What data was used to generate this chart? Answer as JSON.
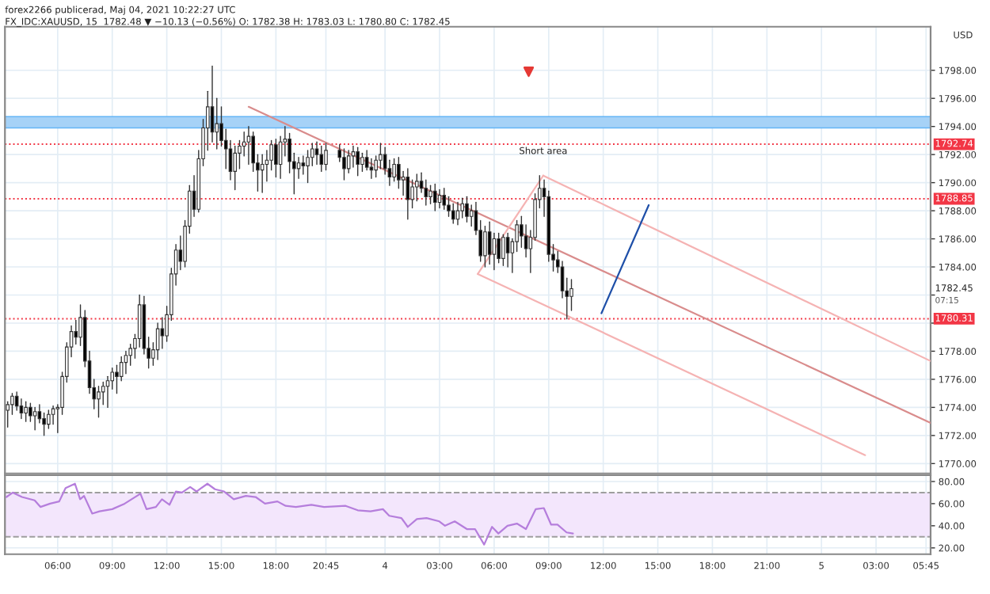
{
  "chart_data": [
    {
      "type": "candlestick",
      "title": "forex2266 publicerad, Maj 04, 2021 10:22:27 UTC",
      "subtitle": "FX_IDC:XAUUSD, 15  1782.48 ▼ −10.13 (−0.56%) O: 1782.38 H: 1783.03 L: 1780.80 C: 1782.45",
      "ylabel": "USD",
      "x": [
        "2021-05-03T03:15",
        "2021-05-03T03:30",
        "2021-05-03T03:45",
        "2021-05-03T04:00",
        "2021-05-03T04:15",
        "2021-05-03T04:30",
        "2021-05-03T04:45",
        "2021-05-03T05:00",
        "2021-05-03T05:15",
        "2021-05-03T05:30",
        "2021-05-03T05:45",
        "2021-05-03T06:00",
        "2021-05-03T06:15",
        "2021-05-03T06:30",
        "2021-05-03T06:45",
        "2021-05-03T07:00",
        "2021-05-03T07:15",
        "2021-05-03T07:30",
        "2021-05-03T07:45",
        "2021-05-03T08:00",
        "2021-05-03T08:15",
        "2021-05-03T08:30",
        "2021-05-03T08:45",
        "2021-05-03T09:00",
        "2021-05-03T09:15",
        "2021-05-03T09:30",
        "2021-05-03T09:45",
        "2021-05-03T10:00",
        "2021-05-03T10:15",
        "2021-05-03T10:30",
        "2021-05-03T10:45",
        "2021-05-03T11:00",
        "2021-05-03T11:15",
        "2021-05-03T11:30",
        "2021-05-03T11:45",
        "2021-05-03T12:00",
        "2021-05-03T12:15",
        "2021-05-03T12:30",
        "2021-05-03T12:45",
        "2021-05-03T13:00",
        "2021-05-03T13:15",
        "2021-05-03T13:30",
        "2021-05-03T13:45",
        "2021-05-03T14:00",
        "2021-05-03T14:15",
        "2021-05-03T14:30",
        "2021-05-03T14:45",
        "2021-05-03T15:00",
        "2021-05-03T15:15",
        "2021-05-03T15:30",
        "2021-05-03T15:45",
        "2021-05-03T16:00",
        "2021-05-03T16:15",
        "2021-05-03T16:30",
        "2021-05-03T16:45",
        "2021-05-03T17:00",
        "2021-05-03T17:15",
        "2021-05-03T17:30",
        "2021-05-03T17:45",
        "2021-05-03T18:00",
        "2021-05-03T18:15",
        "2021-05-03T18:30",
        "2021-05-03T18:45",
        "2021-05-03T19:00",
        "2021-05-03T19:15",
        "2021-05-03T19:30",
        "2021-05-03T19:45",
        "2021-05-03T20:00",
        "2021-05-03T20:15",
        "2021-05-03T20:30",
        "2021-05-03T20:45",
        "2021-05-03T21:30",
        "2021-05-03T21:45",
        "2021-05-03T22:00",
        "2021-05-03T22:15",
        "2021-05-03T22:30",
        "2021-05-03T22:45",
        "2021-05-03T23:00",
        "2021-05-03T23:15",
        "2021-05-03T23:30",
        "2021-05-03T23:45",
        "2021-05-04T00:00",
        "2021-05-04T00:15",
        "2021-05-04T00:30",
        "2021-05-04T00:45",
        "2021-05-04T01:00",
        "2021-05-04T01:15",
        "2021-05-04T01:30",
        "2021-05-04T01:45",
        "2021-05-04T02:00",
        "2021-05-04T02:15",
        "2021-05-04T02:30",
        "2021-05-04T02:45",
        "2021-05-04T03:00",
        "2021-05-04T03:15",
        "2021-05-04T03:30",
        "2021-05-04T03:45",
        "2021-05-04T04:00",
        "2021-05-04T04:15",
        "2021-05-04T04:30",
        "2021-05-04T04:45",
        "2021-05-04T05:00",
        "2021-05-04T05:15",
        "2021-05-04T05:30",
        "2021-05-04T05:45",
        "2021-05-04T06:00",
        "2021-05-04T06:15",
        "2021-05-04T06:30",
        "2021-05-04T06:45",
        "2021-05-04T07:00",
        "2021-05-04T07:15",
        "2021-05-04T07:30",
        "2021-05-04T07:45",
        "2021-05-04T08:00",
        "2021-05-04T08:15",
        "2021-05-04T08:30",
        "2021-05-04T08:45",
        "2021-05-04T09:00",
        "2021-05-04T09:15",
        "2021-05-04T09:30",
        "2021-05-04T09:45",
        "2021-05-04T10:00",
        "2021-05-04T10:15"
      ],
      "ohlc": [
        [
          1773.8,
          1774.4,
          1772.6,
          1774.2
        ],
        [
          1774.2,
          1775.0,
          1773.5,
          1774.8
        ],
        [
          1774.8,
          1775.1,
          1773.8,
          1774.1
        ],
        [
          1774.1,
          1774.6,
          1773.2,
          1773.6
        ],
        [
          1773.6,
          1774.4,
          1773.0,
          1774.0
        ],
        [
          1774.0,
          1774.3,
          1773.0,
          1773.4
        ],
        [
          1773.4,
          1774.0,
          1772.4,
          1773.7
        ],
        [
          1773.7,
          1774.2,
          1772.9,
          1773.2
        ],
        [
          1773.2,
          1773.6,
          1772.0,
          1772.8
        ],
        [
          1772.8,
          1773.8,
          1772.5,
          1773.5
        ],
        [
          1773.5,
          1774.1,
          1772.8,
          1773.9
        ],
        [
          1773.9,
          1774.2,
          1772.2,
          1774.0
        ],
        [
          1774.0,
          1776.5,
          1773.5,
          1776.2
        ],
        [
          1776.2,
          1778.6,
          1775.8,
          1778.3
        ],
        [
          1778.3,
          1779.8,
          1777.6,
          1779.4
        ],
        [
          1779.4,
          1780.2,
          1778.5,
          1779.0
        ],
        [
          1779.0,
          1781.3,
          1778.4,
          1780.4
        ],
        [
          1780.4,
          1780.9,
          1776.9,
          1777.3
        ],
        [
          1777.3,
          1778.0,
          1775.0,
          1775.4
        ],
        [
          1775.4,
          1776.0,
          1773.9,
          1774.6
        ],
        [
          1774.6,
          1775.5,
          1773.3,
          1775.1
        ],
        [
          1775.1,
          1775.8,
          1774.2,
          1775.5
        ],
        [
          1775.5,
          1776.2,
          1774.0,
          1775.9
        ],
        [
          1775.9,
          1776.8,
          1775.3,
          1776.5
        ],
        [
          1776.5,
          1777.0,
          1775.0,
          1776.2
        ],
        [
          1776.2,
          1777.6,
          1775.9,
          1777.2
        ],
        [
          1777.2,
          1778.0,
          1776.4,
          1777.7
        ],
        [
          1777.7,
          1778.5,
          1777.0,
          1778.2
        ],
        [
          1778.2,
          1779.2,
          1777.5,
          1778.9
        ],
        [
          1778.9,
          1782.0,
          1778.3,
          1781.3
        ],
        [
          1781.3,
          1781.9,
          1777.8,
          1778.2
        ],
        [
          1778.2,
          1779.0,
          1776.8,
          1777.5
        ],
        [
          1777.5,
          1778.6,
          1777.0,
          1778.1
        ],
        [
          1778.1,
          1780.0,
          1777.4,
          1779.6
        ],
        [
          1779.6,
          1780.4,
          1778.2,
          1779.1
        ],
        [
          1779.1,
          1781.2,
          1778.7,
          1780.6
        ],
        [
          1780.6,
          1783.9,
          1780.2,
          1783.5
        ],
        [
          1783.5,
          1785.6,
          1782.7,
          1785.2
        ],
        [
          1785.2,
          1786.2,
          1783.8,
          1784.4
        ],
        [
          1784.4,
          1787.3,
          1784.0,
          1786.9
        ],
        [
          1786.9,
          1789.8,
          1786.4,
          1789.4
        ],
        [
          1789.4,
          1790.5,
          1787.6,
          1788.1
        ],
        [
          1788.1,
          1792.3,
          1787.9,
          1791.7
        ],
        [
          1791.7,
          1794.5,
          1791.2,
          1793.9
        ],
        [
          1793.9,
          1796.5,
          1792.3,
          1795.4
        ],
        [
          1795.4,
          1798.3,
          1792.9,
          1793.6
        ],
        [
          1793.6,
          1796.0,
          1792.4,
          1794.2
        ],
        [
          1794.2,
          1795.4,
          1792.6,
          1793.0
        ],
        [
          1793.0,
          1793.8,
          1791.0,
          1792.4
        ],
        [
          1792.4,
          1793.0,
          1790.2,
          1790.8
        ],
        [
          1790.8,
          1792.6,
          1789.5,
          1792.1
        ],
        [
          1792.1,
          1793.0,
          1791.0,
          1792.6
        ],
        [
          1792.6,
          1793.6,
          1791.9,
          1792.9
        ],
        [
          1792.9,
          1794.0,
          1791.3,
          1793.3
        ],
        [
          1793.3,
          1793.6,
          1790.8,
          1791.4
        ],
        [
          1791.4,
          1792.0,
          1789.4,
          1790.9
        ],
        [
          1790.9,
          1792.0,
          1789.3,
          1791.3
        ],
        [
          1791.3,
          1792.3,
          1790.1,
          1791.6
        ],
        [
          1791.6,
          1793.0,
          1790.9,
          1792.7
        ],
        [
          1792.7,
          1793.1,
          1790.4,
          1791.3
        ],
        [
          1791.3,
          1793.3,
          1790.3,
          1792.9
        ],
        [
          1792.9,
          1794.0,
          1791.9,
          1793.1
        ],
        [
          1793.1,
          1793.5,
          1790.7,
          1791.5
        ],
        [
          1791.5,
          1792.1,
          1789.2,
          1791.0
        ],
        [
          1791.0,
          1791.8,
          1790.3,
          1791.4
        ],
        [
          1791.4,
          1791.9,
          1790.6,
          1791.2
        ],
        [
          1791.2,
          1792.3,
          1790.0,
          1791.8
        ],
        [
          1791.8,
          1792.8,
          1791.2,
          1792.4
        ],
        [
          1792.4,
          1792.9,
          1791.3,
          1792.0
        ],
        [
          1792.0,
          1792.6,
          1790.8,
          1791.3
        ],
        [
          1791.3,
          1792.8,
          1790.9,
          1792.3
        ],
        [
          1792.3,
          1792.7,
          1791.5,
          1791.8
        ],
        [
          1791.8,
          1792.4,
          1790.2,
          1791.0
        ],
        [
          1791.0,
          1792.3,
          1790.7,
          1791.9
        ],
        [
          1791.9,
          1792.6,
          1791.1,
          1792.2
        ],
        [
          1792.2,
          1792.5,
          1790.5,
          1791.3
        ],
        [
          1791.3,
          1792.1,
          1790.8,
          1791.8
        ],
        [
          1791.8,
          1792.3,
          1790.9,
          1791.1
        ],
        [
          1791.1,
          1791.7,
          1790.3,
          1790.9
        ],
        [
          1790.9,
          1791.9,
          1790.4,
          1791.6
        ],
        [
          1791.6,
          1792.8,
          1791.0,
          1792.0
        ],
        [
          1792.0,
          1792.5,
          1790.6,
          1791.0
        ],
        [
          1791.0,
          1791.6,
          1789.8,
          1790.4
        ],
        [
          1790.4,
          1791.7,
          1790.1,
          1791.3
        ],
        [
          1791.3,
          1791.8,
          1789.6,
          1790.2
        ],
        [
          1790.2,
          1790.8,
          1789.1,
          1790.4
        ],
        [
          1790.4,
          1791.0,
          1787.4,
          1788.8
        ],
        [
          1788.8,
          1790.2,
          1788.2,
          1789.7
        ],
        [
          1789.7,
          1790.6,
          1788.7,
          1790.1
        ],
        [
          1790.1,
          1790.7,
          1789.3,
          1789.6
        ],
        [
          1789.6,
          1790.2,
          1788.4,
          1789.0
        ],
        [
          1789.0,
          1789.8,
          1788.5,
          1789.4
        ],
        [
          1789.4,
          1789.9,
          1788.0,
          1788.6
        ],
        [
          1788.6,
          1789.5,
          1788.2,
          1789.1
        ],
        [
          1789.1,
          1789.6,
          1788.1,
          1788.4
        ],
        [
          1788.4,
          1789.0,
          1787.6,
          1788.0
        ],
        [
          1788.0,
          1788.5,
          1787.1,
          1787.4
        ],
        [
          1787.4,
          1788.6,
          1787.0,
          1788.0
        ],
        [
          1788.0,
          1788.9,
          1787.5,
          1788.5
        ],
        [
          1788.5,
          1789.0,
          1787.2,
          1787.6
        ],
        [
          1787.6,
          1788.4,
          1786.9,
          1788.0
        ],
        [
          1788.0,
          1788.6,
          1786.3,
          1786.6
        ],
        [
          1786.6,
          1787.3,
          1784.4,
          1784.8
        ],
        [
          1784.8,
          1786.9,
          1784.0,
          1786.5
        ],
        [
          1786.5,
          1787.2,
          1784.2,
          1784.9
        ],
        [
          1784.9,
          1786.4,
          1783.8,
          1786.0
        ],
        [
          1786.0,
          1786.4,
          1784.3,
          1784.6
        ],
        [
          1784.6,
          1786.3,
          1784.1,
          1786.1
        ],
        [
          1786.1,
          1786.4,
          1784.0,
          1785.0
        ],
        [
          1785.0,
          1786.0,
          1783.6,
          1785.8
        ],
        [
          1785.8,
          1787.3,
          1785.1,
          1787.0
        ],
        [
          1787.0,
          1787.6,
          1785.4,
          1786.2
        ],
        [
          1786.2,
          1787.0,
          1784.7,
          1785.3
        ],
        [
          1785.3,
          1786.6,
          1783.6,
          1786.1
        ],
        [
          1786.1,
          1789.2,
          1785.9,
          1788.8
        ],
        [
          1788.8,
          1790.5,
          1788.2,
          1789.6
        ],
        [
          1789.6,
          1790.2,
          1787.6,
          1789.0
        ],
        [
          1789.0,
          1789.4,
          1784.4,
          1784.9
        ],
        [
          1784.9,
          1785.6,
          1783.7,
          1784.5
        ],
        [
          1784.5,
          1785.1,
          1783.6,
          1784.0
        ],
        [
          1784.0,
          1784.4,
          1781.8,
          1782.3
        ],
        [
          1782.3,
          1783.2,
          1780.3,
          1781.9
        ],
        [
          1781.9,
          1783.1,
          1780.9,
          1782.45
        ]
      ],
      "series": [
        {
          "type": "line",
          "color": "#d98c8c",
          "x": [
            "2021-05-03T16:30",
            "2021-05-05T06:00"
          ],
          "values": [
            1795.4,
            1772.9
          ]
        },
        {
          "type": "line",
          "color": "#f5b3b3",
          "x": [
            "2021-05-04T08:42",
            "2021-05-05T06:00"
          ],
          "values": [
            1790.5,
            1777.3
          ]
        },
        {
          "type": "line",
          "color": "#f5b3b3",
          "x": [
            "2021-05-04T05:06",
            "2021-05-05T02:24"
          ],
          "values": [
            1783.5,
            1770.6
          ]
        },
        {
          "type": "line",
          "color": "#f5b3b3",
          "x": [
            "2021-05-04T05:06",
            "2021-05-04T08:42"
          ],
          "values": [
            1783.5,
            1790.5
          ]
        },
        {
          "type": "line",
          "color": "#1e4fa8",
          "x": [
            "2021-05-04T11:54",
            "2021-05-04T14:30"
          ],
          "values": [
            1780.7,
            1788.4
          ]
        },
        {
          "type": "scatter",
          "color": "#e53935",
          "marker": "triangle",
          "x": [
            "2021-05-04T07:54"
          ],
          "values": [
            1797.9
          ]
        }
      ],
      "ref_lines": [
        {
          "axis": "y",
          "value": 1792.74,
          "label": "1792.74",
          "color": "#f23645",
          "line_style": "dotted"
        },
        {
          "axis": "y",
          "value": 1788.85,
          "label": "1788.85",
          "color": "#f23645",
          "line_style": "dotted"
        },
        {
          "axis": "y",
          "value": 1780.31,
          "label": "1780.31",
          "color": "#f23645",
          "line_style": "dotted"
        }
      ],
      "bands": [
        {
          "axis": "y",
          "from": 1793.9,
          "to": 1794.7,
          "color": "#a6d2f7"
        }
      ],
      "annotations": [
        {
          "text": "Short area",
          "x": "2021-05-04T08:42",
          "y": 1790.5
        },
        "1782.45",
        "07:15"
      ],
      "xlim": [
        "2021-05-03T03:06",
        "2021-05-05T06:00"
      ],
      "xticks": [
        {
          "value": "2021-05-03T06:00",
          "label": null
        },
        {
          "value": "2021-05-03T09:00",
          "label": null
        },
        {
          "value": "2021-05-03T12:00",
          "label": null
        },
        {
          "value": "2021-05-03T15:00",
          "label": null
        },
        {
          "value": "2021-05-03T18:00",
          "label": null
        },
        {
          "value": "2021-05-03T20:45",
          "label": null
        },
        {
          "value": "2021-05-04T00:00",
          "label": null
        },
        {
          "value": "2021-05-04T03:00",
          "label": null
        },
        {
          "value": "2021-05-04T06:00",
          "label": null
        },
        {
          "value": "2021-05-04T09:00",
          "label": null
        },
        {
          "value": "2021-05-04T12:00",
          "label": null
        },
        {
          "value": "2021-05-04T15:00",
          "label": null
        },
        {
          "value": "2021-05-04T18:00",
          "label": null
        },
        {
          "value": "2021-05-04T21:00",
          "label": null
        },
        {
          "value": "2021-05-05T00:00",
          "label": null
        },
        {
          "value": "2021-05-05T03:00",
          "label": null
        },
        {
          "value": "2021-05-05T05:45",
          "label": null
        }
      ],
      "ylim": [
        1769.3,
        1801.1
      ],
      "yticks": [
        {
          "value": 1770,
          "label": "1770.00"
        },
        {
          "value": 1772,
          "label": "1772.00"
        },
        {
          "value": 1774,
          "label": "1774.00"
        },
        {
          "value": 1776,
          "label": "1776.00"
        },
        {
          "value": 1778,
          "label": "1778.00"
        },
        {
          "value": 1780,
          "label": null
        },
        {
          "value": 1782,
          "label": null
        },
        {
          "value": 1784,
          "label": "1784.00"
        },
        {
          "value": 1786,
          "label": "1786.00"
        },
        {
          "value": 1788,
          "label": "1788.00"
        },
        {
          "value": 1790,
          "label": "1790.00"
        },
        {
          "value": 1792,
          "label": "1792.00"
        },
        {
          "value": 1794,
          "label": "1794.00"
        },
        {
          "value": 1796,
          "label": "1796.00"
        },
        {
          "value": 1798,
          "label": "1798.00"
        }
      ],
      "tick_labels": "y",
      "grid": true
    },
    {
      "type": "line",
      "x": [
        "2021-05-03T03:11",
        "2021-05-03T03:32",
        "2021-05-03T04:02",
        "2021-05-03T04:44",
        "2021-05-03T05:03",
        "2021-05-03T05:35",
        "2021-05-03T06:05",
        "2021-05-03T06:26",
        "2021-05-03T06:57",
        "2021-05-03T07:14",
        "2021-05-03T07:27",
        "2021-05-03T07:54",
        "2021-05-03T08:18",
        "2021-05-03T09:00",
        "2021-05-03T09:41",
        "2021-05-03T10:33",
        "2021-05-03T10:53",
        "2021-05-03T11:24",
        "2021-05-03T11:44",
        "2021-05-03T12:09",
        "2021-05-03T12:30",
        "2021-05-03T12:50",
        "2021-05-03T13:17",
        "2021-05-03T13:38",
        "2021-05-03T14:14",
        "2021-05-03T14:39",
        "2021-05-03T15:09",
        "2021-05-03T15:41",
        "2021-05-03T16:21",
        "2021-05-03T16:53",
        "2021-05-03T17:24",
        "2021-05-03T18:05",
        "2021-05-03T18:32",
        "2021-05-03T19:06",
        "2021-05-03T19:57",
        "2021-05-03T20:39",
        "2021-05-03T21:50",
        "2021-05-03T22:30",
        "2021-05-03T23:12",
        "2021-05-03T23:53",
        "2021-05-04T00:14",
        "2021-05-04T00:54",
        "2021-05-04T01:15",
        "2021-05-04T01:45",
        "2021-05-04T02:17",
        "2021-05-04T02:59",
        "2021-05-04T03:18",
        "2021-05-04T03:50",
        "2021-05-04T04:30",
        "2021-05-04T04:57",
        "2021-05-04T05:27",
        "2021-05-04T05:53",
        "2021-05-04T06:14",
        "2021-05-04T06:44",
        "2021-05-04T07:15",
        "2021-05-04T07:45",
        "2021-05-04T08:17",
        "2021-05-04T08:44",
        "2021-05-04T09:08",
        "2021-05-04T09:29",
        "2021-05-04T09:59",
        "2021-05-04T10:20"
      ],
      "series": [
        {
          "color": "#b57edc",
          "values": [
            66,
            70,
            66,
            63,
            57,
            60,
            62,
            74,
            78,
            64,
            67,
            51,
            53,
            55,
            60,
            69,
            55,
            57,
            64,
            59,
            71,
            70,
            75,
            71,
            78,
            73,
            71,
            64,
            67,
            66,
            60,
            62,
            58,
            57,
            59,
            57,
            58,
            54,
            53,
            55,
            49,
            47,
            39,
            46,
            47,
            44,
            40,
            44,
            37,
            37,
            23,
            39,
            33,
            40,
            42,
            37,
            55,
            56,
            41,
            41,
            34,
            33
          ]
        }
      ],
      "bands": [
        {
          "axis": "y",
          "from": 30,
          "to": 70,
          "color": "#f3e6fc"
        }
      ],
      "ref_lines": [
        {
          "axis": "y",
          "value": 30,
          "color": "#9e9e9e",
          "line_style": "dashed"
        },
        {
          "axis": "y",
          "value": 70,
          "color": "#9e9e9e",
          "line_style": "dashed"
        }
      ],
      "xlim": [
        "2021-05-03T03:06",
        "2021-05-05T06:00"
      ],
      "xticks": [
        {
          "value": "2021-05-03T06:00",
          "label": "06:00"
        },
        {
          "value": "2021-05-03T09:00",
          "label": "09:00"
        },
        {
          "value": "2021-05-03T12:00",
          "label": "12:00"
        },
        {
          "value": "2021-05-03T15:00",
          "label": "15:00"
        },
        {
          "value": "2021-05-03T18:00",
          "label": "18:00"
        },
        {
          "value": "2021-05-03T20:45",
          "label": "20:45"
        },
        {
          "value": "2021-05-04T00:00",
          "label": "4"
        },
        {
          "value": "2021-05-04T03:00",
          "label": "03:00"
        },
        {
          "value": "2021-05-04T06:00",
          "label": "06:00"
        },
        {
          "value": "2021-05-04T09:00",
          "label": "09:00"
        },
        {
          "value": "2021-05-04T12:00",
          "label": "12:00"
        },
        {
          "value": "2021-05-04T15:00",
          "label": "15:00"
        },
        {
          "value": "2021-05-04T18:00",
          "label": "18:00"
        },
        {
          "value": "2021-05-04T21:00",
          "label": "21:00"
        },
        {
          "value": "2021-05-05T00:00",
          "label": "5"
        },
        {
          "value": "2021-05-05T03:00",
          "label": "03:00"
        },
        {
          "value": "2021-05-05T05:45",
          "label": "05:45"
        }
      ],
      "ylim": [
        14.3,
        85.7
      ],
      "yticks": [
        {
          "value": 20,
          "label": "20.00"
        },
        {
          "value": 40,
          "label": "40.00"
        },
        {
          "value": 60,
          "label": "60.00"
        },
        {
          "value": 80,
          "label": "80.00"
        }
      ],
      "grid": true
    }
  ]
}
